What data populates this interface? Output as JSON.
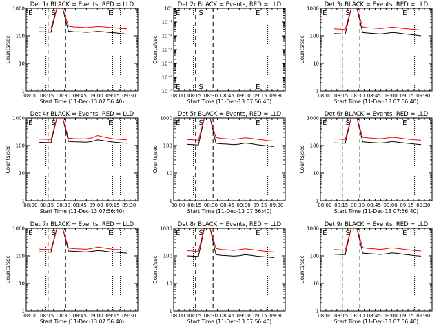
{
  "colors": {
    "events": "#000000",
    "lld": "#ff0000",
    "background": "#ffffff",
    "axis": "#000000"
  },
  "chart_data": [
    {
      "type": "line",
      "title": "Det 1r BLACK = Events, RED = LLD",
      "xlabel": "Start Time (11-Dec-13 07:56:40)",
      "ylabel": "Counts/sec",
      "scale": "log",
      "ylim": [
        1,
        1000
      ],
      "yticks": [
        "1",
        "10",
        "100",
        "1000"
      ],
      "x_tick_labels": [
        "08:00",
        "08:15",
        "08:30",
        "08:45",
        "09:00",
        "09:15",
        "09:30"
      ],
      "markers": [
        {
          "label": "E",
          "x": "07:58"
        },
        {
          "label": "S",
          "x": "08:19"
        },
        {
          "label": "E",
          "x": "09:11"
        }
      ],
      "dashed_lines": [
        "08:16",
        "08:32"
      ],
      "dotted_lines": [
        "08:14",
        "09:15",
        "09:22"
      ],
      "empty": false,
      "series": [
        {
          "name": "Events",
          "values": [
            140,
            138,
            135,
            1000,
            1000,
            145,
            140,
            138,
            133,
            137,
            144,
            140,
            132,
            127,
            120,
            115
          ]
        },
        {
          "name": "LLD",
          "values": [
            200,
            195,
            190,
            1000,
            1000,
            225,
            210,
            206,
            200,
            208,
            218,
            212,
            202,
            195,
            186,
            180
          ]
        }
      ]
    },
    {
      "type": "line",
      "title": "Det 2r BLACK = Events, RED = LLD",
      "xlabel": "Start Time (11-Dec-13 07:56:40)",
      "ylabel": "Counts/sec",
      "scale": "log",
      "ylim": [
        1e-06,
        1
      ],
      "yticks": [
        "10⁻⁶",
        "10⁻⁵",
        "10⁻⁴",
        "10⁻³",
        "10⁻²",
        "10⁻¹",
        "10⁰"
      ],
      "x_tick_labels": [
        "08:00",
        "08:15",
        "08:30",
        "08:45",
        "09:00",
        "09:15",
        "09:30"
      ],
      "markers": [
        {
          "label": "E",
          "x": "07:58"
        },
        {
          "label": "S",
          "x": "08:19"
        },
        {
          "label": "E",
          "x": "09:11"
        }
      ],
      "dashed_lines": [
        "08:16",
        "08:32"
      ],
      "dotted_lines": [
        "08:14",
        "09:15",
        "09:22"
      ],
      "empty": true,
      "series": []
    },
    {
      "type": "line",
      "title": "Det 3r BLACK = Events, RED = LLD",
      "xlabel": "Start Time (11-Dec-13 07:56:40)",
      "ylabel": "Counts/sec",
      "scale": "log",
      "ylim": [
        1,
        1000
      ],
      "yticks": [
        "1",
        "10",
        "100",
        "1000"
      ],
      "x_tick_labels": [
        "08:00",
        "08:15",
        "08:30",
        "08:45",
        "09:00",
        "09:15",
        "09:30"
      ],
      "markers": [
        {
          "label": "E",
          "x": "07:58"
        },
        {
          "label": "S",
          "x": "08:19"
        },
        {
          "label": "E",
          "x": "09:11"
        }
      ],
      "dashed_lines": [
        "08:16",
        "08:32"
      ],
      "dotted_lines": [
        "08:14",
        "09:15",
        "09:22"
      ],
      "empty": false,
      "series": [
        {
          "name": "Events",
          "values": [
            120,
            118,
            115,
            1000,
            1000,
            130,
            125,
            120,
            116,
            122,
            132,
            126,
            118,
            112,
            106,
            100
          ]
        },
        {
          "name": "LLD",
          "values": [
            180,
            175,
            170,
            1000,
            1000,
            210,
            195,
            190,
            184,
            194,
            206,
            198,
            186,
            178,
            170,
            162
          ]
        }
      ]
    },
    {
      "type": "line",
      "title": "Det 4r BLACK = Events, RED = LLD",
      "xlabel": "Start Time (11-Dec-13 07:56:40)",
      "ylabel": "Counts/sec",
      "scale": "log",
      "ylim": [
        1,
        1000
      ],
      "yticks": [
        "1",
        "10",
        "100",
        "1000"
      ],
      "x_tick_labels": [
        "08:00",
        "08:15",
        "08:30",
        "08:45",
        "09:00",
        "09:15",
        "09:30"
      ],
      "markers": [
        {
          "label": "E",
          "x": "07:58"
        },
        {
          "label": "S",
          "x": "08:19"
        },
        {
          "label": "E",
          "x": "09:11"
        }
      ],
      "dashed_lines": [
        "08:16",
        "08:32"
      ],
      "dotted_lines": [
        "08:14",
        "09:15",
        "09:22"
      ],
      "empty": false,
      "series": [
        {
          "name": "Events",
          "values": [
            130,
            128,
            126,
            1000,
            1000,
            140,
            135,
            134,
            132,
            140,
            160,
            150,
            138,
            130,
            125,
            120
          ]
        },
        {
          "name": "LLD",
          "values": [
            170,
            168,
            165,
            1000,
            1000,
            185,
            178,
            176,
            175,
            190,
            230,
            205,
            185,
            172,
            165,
            160
          ]
        }
      ]
    },
    {
      "type": "line",
      "title": "Det 5r BLACK = Events, RED = LLD",
      "xlabel": "Start Time (11-Dec-13 07:56:40)",
      "ylabel": "Counts/sec",
      "scale": "log",
      "ylim": [
        1,
        1000
      ],
      "yticks": [
        "1",
        "10",
        "100",
        "1000"
      ],
      "x_tick_labels": [
        "08:00",
        "08:15",
        "08:30",
        "08:45",
        "09:00",
        "09:15",
        "09:30"
      ],
      "markers": [
        {
          "label": "E",
          "x": "07:58"
        },
        {
          "label": "S",
          "x": "08:19"
        },
        {
          "label": "E",
          "x": "09:11"
        }
      ],
      "dashed_lines": [
        "08:16",
        "08:32"
      ],
      "dotted_lines": [
        "08:14",
        "09:15",
        "09:22"
      ],
      "empty": false,
      "series": [
        {
          "name": "Events",
          "values": [
            110,
            108,
            105,
            1000,
            1000,
            120,
            115,
            112,
            108,
            112,
            122,
            116,
            108,
            102,
            96,
            92
          ]
        },
        {
          "name": "LLD",
          "values": [
            165,
            160,
            155,
            1000,
            1000,
            195,
            180,
            175,
            168,
            178,
            192,
            182,
            170,
            160,
            150,
            145
          ]
        }
      ]
    },
    {
      "type": "line",
      "title": "Det 6r BLACK = Events, RED = LLD",
      "xlabel": "Start Time (11-Dec-13 07:56:40)",
      "ylabel": "Counts/sec",
      "scale": "log",
      "ylim": [
        1,
        1000
      ],
      "yticks": [
        "1",
        "10",
        "100",
        "1000"
      ],
      "x_tick_labels": [
        "08:00",
        "08:15",
        "08:30",
        "08:45",
        "09:00",
        "09:15",
        "09:30"
      ],
      "markers": [
        {
          "label": "E",
          "x": "07:58"
        },
        {
          "label": "S",
          "x": "08:19"
        },
        {
          "label": "E",
          "x": "09:11"
        }
      ],
      "dashed_lines": [
        "08:16",
        "08:32"
      ],
      "dotted_lines": [
        "08:14",
        "09:15",
        "09:22"
      ],
      "empty": false,
      "series": [
        {
          "name": "Events",
          "values": [
            125,
            122,
            120,
            1000,
            1000,
            135,
            130,
            126,
            122,
            128,
            140,
            132,
            124,
            118,
            112,
            108
          ]
        },
        {
          "name": "LLD",
          "values": [
            175,
            170,
            166,
            1000,
            1000,
            200,
            188,
            182,
            176,
            186,
            200,
            190,
            178,
            168,
            160,
            155
          ]
        }
      ]
    },
    {
      "type": "line",
      "title": "Det 7r BLACK = Events, RED = LLD",
      "xlabel": "Start Time (11-Dec-13 07:56:40)",
      "ylabel": "Counts/sec",
      "scale": "log",
      "ylim": [
        1,
        1000
      ],
      "yticks": [
        "1",
        "10",
        "100",
        "1000"
      ],
      "x_tick_labels": [
        "08:00",
        "08:15",
        "08:30",
        "08:45",
        "09:00",
        "09:15",
        "09:30"
      ],
      "markers": [
        {
          "label": "E",
          "x": "07:58"
        },
        {
          "label": "S",
          "x": "08:19"
        },
        {
          "label": "E",
          "x": "09:11"
        }
      ],
      "dashed_lines": [
        "08:16",
        "08:32"
      ],
      "dotted_lines": [
        "08:14",
        "09:15",
        "09:22"
      ],
      "empty": false,
      "series": [
        {
          "name": "Events",
          "values": [
            140,
            138,
            135,
            1000,
            1000,
            150,
            145,
            142,
            138,
            145,
            155,
            150,
            140,
            135,
            130,
            125
          ]
        },
        {
          "name": "LLD",
          "values": [
            175,
            172,
            168,
            1000,
            1000,
            190,
            182,
            178,
            174,
            185,
            210,
            195,
            180,
            170,
            165,
            160
          ]
        }
      ]
    },
    {
      "type": "line",
      "title": "Det 8r BLACK = Events, RED = LLD",
      "xlabel": "Start Time (11-Dec-13 07:56:40)",
      "ylabel": "Counts/sec",
      "scale": "log",
      "ylim": [
        1,
        1000
      ],
      "yticks": [
        "1",
        "10",
        "100",
        "1000"
      ],
      "x_tick_labels": [
        "08:00",
        "08:15",
        "08:30",
        "08:45",
        "09:00",
        "09:15",
        "09:30"
      ],
      "markers": [
        {
          "label": "E",
          "x": "07:58"
        },
        {
          "label": "S",
          "x": "08:19"
        },
        {
          "label": "E",
          "x": "09:11"
        }
      ],
      "dashed_lines": [
        "08:16",
        "08:32"
      ],
      "dotted_lines": [
        "08:14",
        "09:15",
        "09:22"
      ],
      "empty": false,
      "series": [
        {
          "name": "Events",
          "values": [
            100,
            98,
            96,
            1000,
            1000,
            110,
            105,
            102,
            98,
            102,
            110,
            104,
            98,
            94,
            90,
            86
          ]
        },
        {
          "name": "LLD",
          "values": [
            155,
            150,
            146,
            1000,
            1000,
            185,
            170,
            165,
            158,
            168,
            180,
            170,
            160,
            150,
            142,
            138
          ]
        }
      ]
    },
    {
      "type": "line",
      "title": "Det 9r BLACK = Events, RED = LLD",
      "xlabel": "Start Time (11-Dec-13 07:56:40)",
      "ylabel": "Counts/sec",
      "scale": "log",
      "ylim": [
        1,
        1000
      ],
      "yticks": [
        "1",
        "10",
        "100",
        "1000"
      ],
      "x_tick_labels": [
        "08:00",
        "08:15",
        "08:30",
        "08:45",
        "09:00",
        "09:15",
        "09:30"
      ],
      "markers": [
        {
          "label": "E",
          "x": "07:58"
        },
        {
          "label": "S",
          "x": "08:19"
        },
        {
          "label": "E",
          "x": "09:11"
        }
      ],
      "dashed_lines": [
        "08:16",
        "08:32"
      ],
      "dotted_lines": [
        "08:14",
        "09:15",
        "09:22"
      ],
      "empty": false,
      "series": [
        {
          "name": "Events",
          "values": [
            115,
            112,
            110,
            1000,
            1000,
            125,
            120,
            116,
            112,
            118,
            128,
            122,
            114,
            108,
            102,
            98
          ]
        },
        {
          "name": "LLD",
          "values": [
            170,
            165,
            160,
            1000,
            1000,
            200,
            185,
            180,
            172,
            182,
            196,
            186,
            174,
            164,
            156,
            150
          ]
        }
      ]
    }
  ]
}
